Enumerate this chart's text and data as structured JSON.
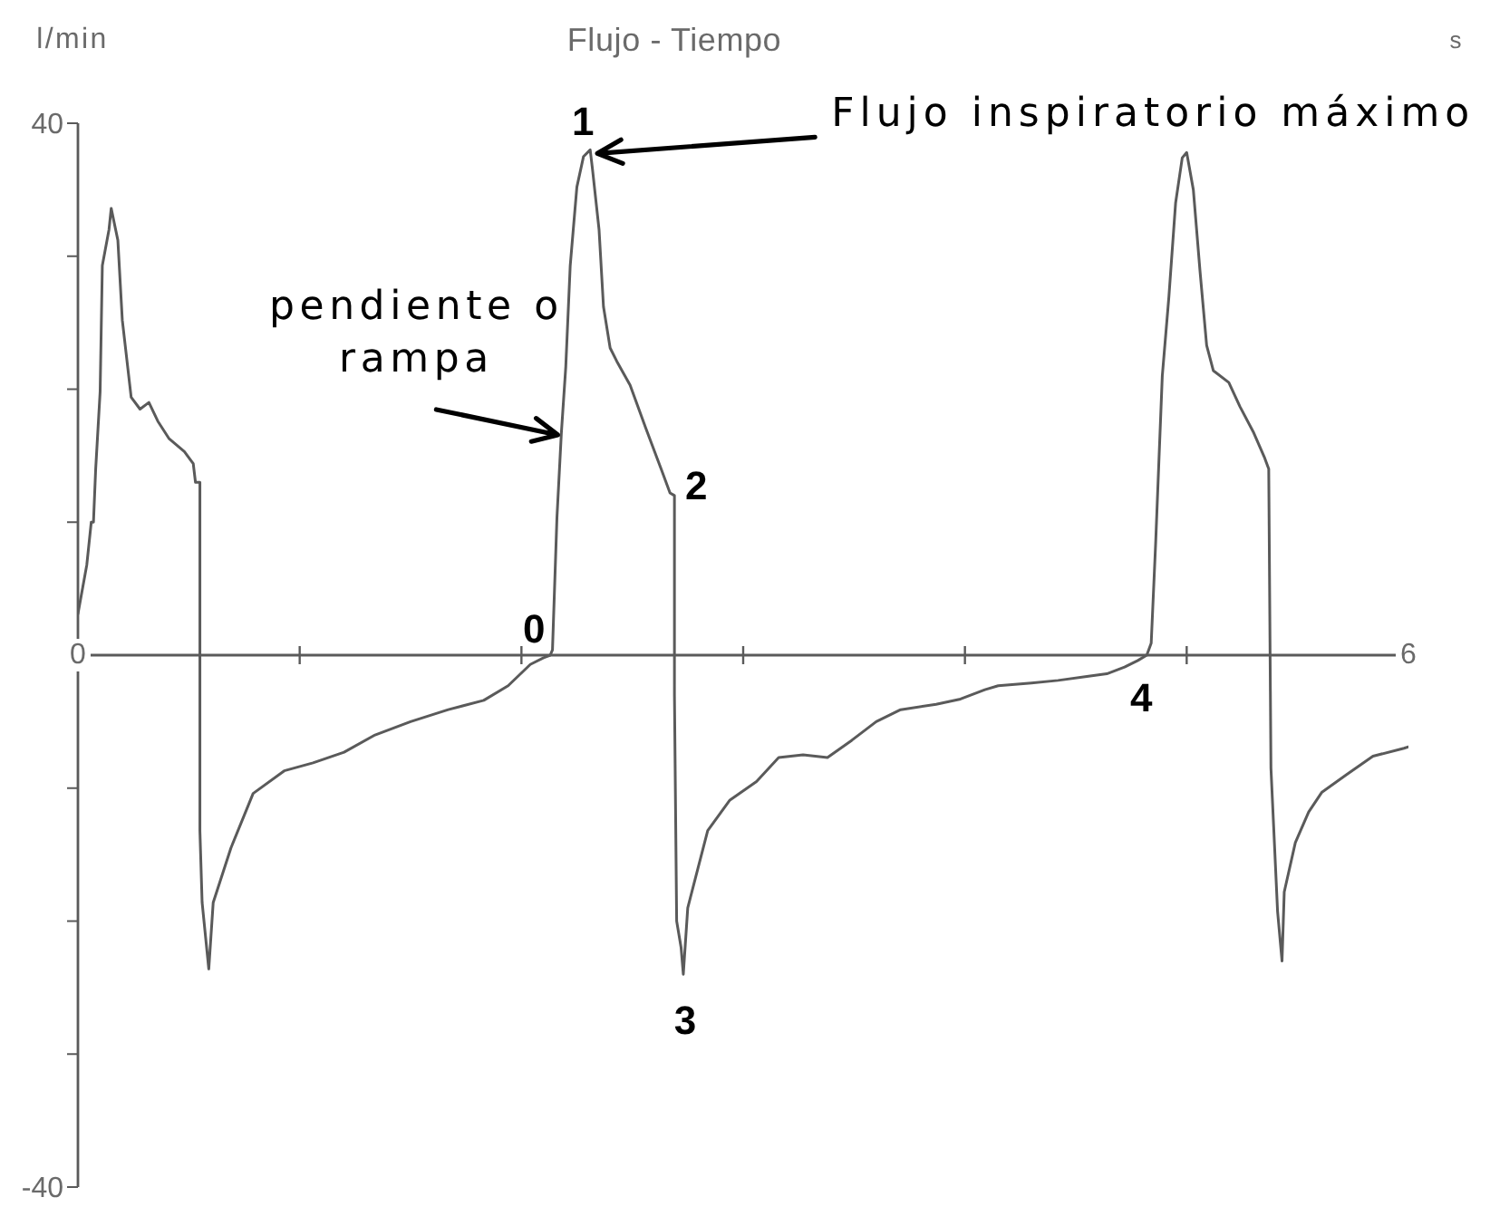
{
  "chart_data": {
    "type": "line",
    "title": "Flujo - Tiempo",
    "xlabel": "s",
    "ylabel": "l/min",
    "xlim": [
      0,
      6
    ],
    "xticks": [
      0,
      {
        "value": 1,
        "label": null
      },
      {
        "value": 2,
        "label": null
      },
      {
        "value": 3,
        "label": null
      },
      {
        "value": 4,
        "label": null
      },
      {
        "value": 5,
        "label": null
      },
      6
    ],
    "ylim": [
      -40,
      40
    ],
    "yticks": [
      40,
      {
        "value": 30,
        "label": null
      },
      {
        "value": 20,
        "label": null
      },
      {
        "value": 10,
        "label": null
      },
      {
        "value": 0,
        "label": null
      },
      {
        "value": -10,
        "label": null
      },
      {
        "value": -20,
        "label": null
      },
      {
        "value": -30,
        "label": null
      },
      -40
    ],
    "color": "#5a5a5a",
    "x": [
      0.0,
      0.04,
      0.06,
      0.07,
      0.08,
      0.1,
      0.11,
      0.14,
      0.15,
      0.18,
      0.2,
      0.24,
      0.28,
      0.32,
      0.36,
      0.41,
      0.48,
      0.52,
      0.53,
      0.55,
      0.55,
      0.56,
      0.59,
      0.61,
      0.69,
      0.79,
      0.93,
      1.06,
      1.2,
      1.34,
      1.5,
      1.67,
      1.83,
      1.94,
      2.04,
      2.1,
      2.13,
      2.14,
      2.16,
      2.18,
      2.2,
      2.22,
      2.25,
      2.28,
      2.31,
      2.32,
      2.35,
      2.37,
      2.4,
      2.43,
      2.49,
      2.56,
      2.63,
      2.67,
      2.69,
      2.69,
      2.7,
      2.72,
      2.73,
      2.75,
      2.84,
      2.94,
      3.06,
      3.16,
      3.27,
      3.38,
      3.49,
      3.6,
      3.71,
      3.87,
      3.98,
      4.09,
      4.15,
      4.3,
      4.42,
      4.55,
      4.64,
      4.72,
      4.78,
      4.82,
      4.84,
      4.86,
      4.89,
      4.92,
      4.95,
      4.98,
      5.0,
      5.03,
      5.06,
      5.09,
      5.12,
      5.19,
      5.24,
      5.3,
      5.35,
      5.37,
      5.38,
      5.41,
      5.43,
      5.44,
      5.49,
      5.55,
      5.61,
      5.72,
      5.84,
      5.98,
      6.0
    ],
    "values": [
      3.1,
      6.8,
      10,
      10,
      14,
      19.8,
      29.3,
      32,
      33.6,
      31.2,
      25.2,
      19.4,
      18.5,
      19,
      17.6,
      16.3,
      15.3,
      14.4,
      13,
      13,
      -13.2,
      -18.6,
      -23.6,
      -18.6,
      -14.5,
      -10.4,
      -8.7,
      -8.1,
      -7.3,
      -6,
      -5,
      -4.1,
      -3.4,
      -2.3,
      -0.7,
      -0.2,
      0,
      0.4,
      10.3,
      16.7,
      21.7,
      29.3,
      35.2,
      37.5,
      38,
      36.6,
      32,
      26.2,
      23.1,
      22.1,
      20.3,
      17.1,
      14,
      12.2,
      12,
      -3,
      -20,
      -22,
      -24,
      -19,
      -13.2,
      -10.9,
      -9.5,
      -7.7,
      -7.5,
      -7.7,
      -6.4,
      -5,
      -4.1,
      -3.7,
      -3.3,
      -2.6,
      -2.3,
      -2.1,
      -1.9,
      -1.6,
      -1.4,
      -0.9,
      -0.4,
      0,
      0.9,
      8.4,
      21,
      27,
      34,
      37.4,
      37.8,
      35,
      28.9,
      23.3,
      21.4,
      20.5,
      18.7,
      16.8,
      14.9,
      14,
      -8.5,
      -19.3,
      -23,
      -17.8,
      -14.1,
      -11.8,
      -10.3,
      -9,
      -7.6,
      -7,
      -6.9
    ],
    "annotations": [
      {
        "text": "Flujo inspiratorio máximo",
        "x": 2.31,
        "y": 38
      },
      {
        "text": "1",
        "x": 2.31,
        "y": 38
      },
      {
        "text": "pendiente o rampa",
        "x": 2.18,
        "y": 16.7
      },
      {
        "text": "2",
        "x": 2.69,
        "y": 12
      },
      {
        "text": "0",
        "x": 2.13,
        "y": 0
      },
      {
        "text": "4",
        "x": 4.82,
        "y": 0
      },
      {
        "text": "3",
        "x": 2.73,
        "y": -24
      }
    ]
  }
}
